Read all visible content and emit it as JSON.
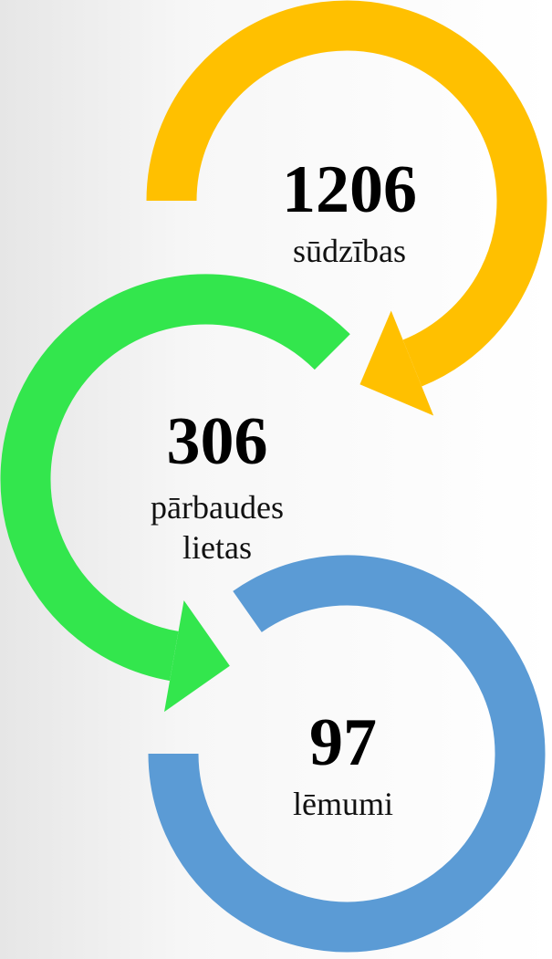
{
  "items": [
    {
      "value": 1206,
      "label": [
        "sūdzības"
      ]
    },
    {
      "value": 306,
      "label": [
        "pārbaudes",
        "lietas"
      ]
    },
    {
      "value": 97,
      "label": [
        "lēmumi"
      ]
    }
  ]
}
